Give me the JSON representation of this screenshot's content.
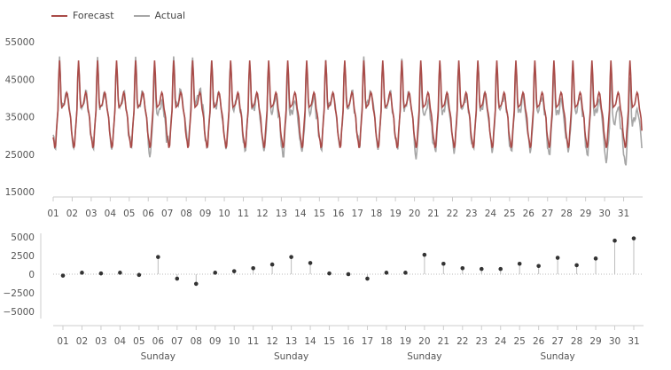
{
  "legend": {
    "forecast_label": "Forecast",
    "actual_label": "Actual"
  },
  "colors": {
    "forecast": "#a94a47",
    "actual": "#a6a6a6",
    "stem": "#bdbdbd",
    "point": "#333333",
    "axis": "#cccccc",
    "zero_line": "#bbbbbb"
  },
  "chart_data": [
    {
      "type": "line",
      "title": "",
      "xlabel": "",
      "ylabel": "",
      "ylim": [
        15000,
        55000
      ],
      "yticks": [
        15000,
        25000,
        35000,
        45000,
        55000
      ],
      "x_tick_labels": [
        "01",
        "02",
        "03",
        "04",
        "05",
        "06",
        "07",
        "08",
        "09",
        "10",
        "11",
        "12",
        "13",
        "14",
        "15",
        "16",
        "17",
        "18",
        "19",
        "20",
        "21",
        "22",
        "23",
        "24",
        "25",
        "26",
        "27",
        "28",
        "29",
        "30",
        "31"
      ],
      "days": 31,
      "daily_profile": {
        "night_min": 26500,
        "morning_peak": 50000,
        "midday_dip": 37500,
        "evening_peak": 41500
      },
      "series": [
        {
          "name": "Forecast"
        },
        {
          "name": "Actual"
        }
      ],
      "grid": false,
      "legend_position": "top-left"
    },
    {
      "type": "stem",
      "title": "",
      "xlabel": "",
      "ylabel": "",
      "ylim": [
        -5000,
        5000
      ],
      "yticks": [
        -5000,
        -2500,
        0,
        2500,
        5000
      ],
      "ytick_labels": [
        "−5000",
        "−2500",
        "0",
        "2500",
        "5000"
      ],
      "categories": [
        "01",
        "02",
        "03",
        "04",
        "05",
        "06",
        "07",
        "08",
        "09",
        "10",
        "11",
        "12",
        "13",
        "14",
        "15",
        "16",
        "17",
        "18",
        "19",
        "20",
        "21",
        "22",
        "23",
        "24",
        "25",
        "26",
        "27",
        "28",
        "29",
        "30",
        "31"
      ],
      "values": [
        -200,
        200,
        100,
        200,
        -100,
        2300,
        -600,
        -1300,
        200,
        400,
        800,
        1300,
        2300,
        1500,
        100,
        0,
        -600,
        200,
        200,
        2600,
        1400,
        800,
        700,
        700,
        1400,
        1100,
        2200,
        1200,
        2100,
        4500,
        4800
      ],
      "week_labels": [
        {
          "day": "06",
          "label": "Sunday"
        },
        {
          "day": "13",
          "label": "Sunday"
        },
        {
          "day": "20",
          "label": "Sunday"
        },
        {
          "day": "27",
          "label": "Sunday"
        }
      ],
      "grid": false
    }
  ]
}
